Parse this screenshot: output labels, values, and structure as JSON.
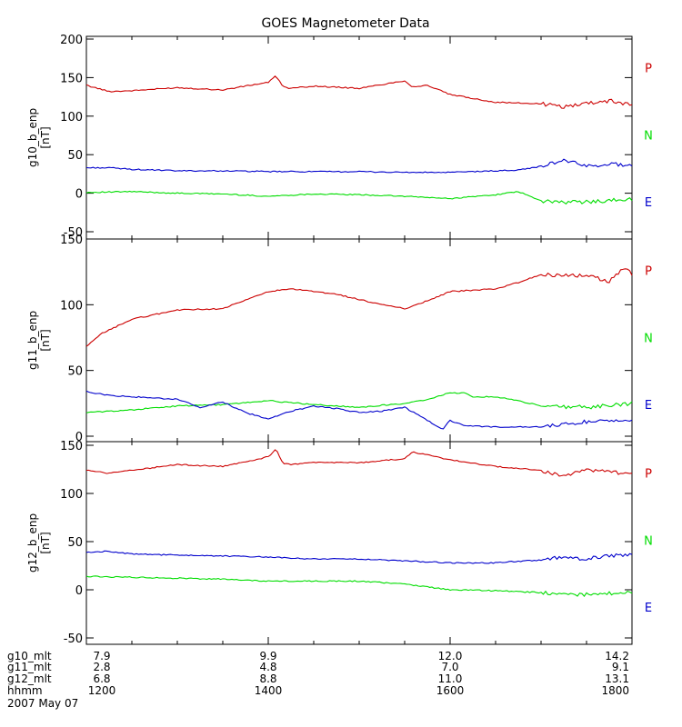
{
  "chart_data": {
    "type": "line",
    "title": "GOES Magnetometer Data",
    "date_label": "2007 May 07",
    "x_axis": {
      "row_labels": [
        "g10_mlt",
        "g11_mlt",
        "g12_mlt",
        "hhmm"
      ],
      "ticks": [
        {
          "values": [
            "7.9",
            "2.8",
            "6.8",
            "1200"
          ]
        },
        {
          "values": [
            "9.9",
            "4.8",
            "8.8",
            "1400"
          ]
        },
        {
          "values": [
            "12.0",
            "7.0",
            "11.0",
            "1600"
          ]
        },
        {
          "values": [
            "14.2",
            "9.1",
            "13.1",
            "1800"
          ]
        }
      ],
      "xlim": [
        "1200",
        "1800"
      ]
    },
    "panels": [
      {
        "ylabel": "g10_b_enp",
        "yunit": "[nT]",
        "ylim": [
          -50,
          200
        ],
        "yticks": [
          "-50",
          "0",
          "50",
          "100",
          "150",
          "200"
        ],
        "series": [
          {
            "name": "P",
            "color": "#cc0000",
            "x": [
              "1200",
              "1215",
              "1230",
              "1300",
              "1330",
              "1400",
              "1405",
              "1410",
              "1415",
              "1430",
              "1500",
              "1530",
              "1535",
              "1545",
              "1600",
              "1630",
              "1700",
              "1715",
              "1730",
              "1745",
              "1800"
            ],
            "values": [
              140,
              132,
              133,
              137,
              134,
              144,
              152,
              138,
              136,
              139,
              136,
              146,
              138,
              140,
              128,
              118,
              116,
              112,
              117,
              120,
              115
            ]
          },
          {
            "name": "N",
            "color": "#00dd00",
            "x": [
              "1200",
              "1230",
              "1300",
              "1330",
              "1400",
              "1430",
              "1500",
              "1530",
              "1600",
              "1630",
              "1645",
              "1700",
              "1715",
              "1730",
              "1800"
            ],
            "values": [
              1,
              2,
              0,
              -1,
              -4,
              -1,
              -2,
              -4,
              -7,
              -2,
              2,
              -10,
              -12,
              -11,
              -8
            ]
          },
          {
            "name": "E",
            "color": "#0000cc",
            "x": [
              "1200",
              "1215",
              "1230",
              "1300",
              "1330",
              "1400",
              "1430",
              "1500",
              "1530",
              "1600",
              "1630",
              "1645",
              "1700",
              "1715",
              "1730",
              "1745",
              "1800"
            ],
            "values": [
              33,
              33,
              31,
              29,
              29,
              28,
              28,
              28,
              27,
              27,
              29,
              30,
              35,
              43,
              35,
              38,
              36
            ]
          }
        ]
      },
      {
        "ylabel": "g11_b_enp",
        "yunit": "[nT]",
        "ylim": [
          0,
          150
        ],
        "yticks": [
          "0",
          "50",
          "100",
          "150"
        ],
        "series": [
          {
            "name": "P",
            "color": "#cc0000",
            "x": [
              "1200",
              "1210",
              "1230",
              "1300",
              "1330",
              "1400",
              "1415",
              "1445",
              "1515",
              "1530",
              "1545",
              "1600",
              "1615",
              "1630",
              "1645",
              "1700",
              "1730",
              "1745",
              "1755",
              "1800"
            ],
            "values": [
              68,
              78,
              89,
              96,
              97,
              110,
              112,
              108,
              100,
              97,
              103,
              110,
              111,
              112,
              117,
              123,
              122,
              118,
              129,
              123
            ]
          },
          {
            "name": "N",
            "color": "#00dd00",
            "x": [
              "1200",
              "1230",
              "1300",
              "1330",
              "1400",
              "1430",
              "1500",
              "1530",
              "1545",
              "1600",
              "1610",
              "1615",
              "1630",
              "1645",
              "1700",
              "1730",
              "1800"
            ],
            "values": [
              18,
              20,
              23,
              24,
              27,
              24,
              22,
              25,
              28,
              33,
              33,
              30,
              30,
              27,
              23,
              22,
              25
            ]
          },
          {
            "name": "E",
            "color": "#0000cc",
            "x": [
              "1200",
              "1215",
              "1230",
              "1300",
              "1315",
              "1330",
              "1345",
              "1400",
              "1415",
              "1430",
              "1445",
              "1500",
              "1515",
              "1530",
              "1545",
              "1555",
              "1600",
              "1610",
              "1630",
              "1700",
              "1730",
              "1800"
            ],
            "values": [
              34,
              31,
              30,
              28,
              22,
              26,
              18,
              13,
              19,
              23,
              21,
              18,
              19,
              22,
              12,
              5,
              12,
              8,
              7,
              7,
              11,
              13
            ]
          }
        ]
      },
      {
        "ylabel": "g12_b_enp",
        "yunit": "[nT]",
        "ylim": [
          -50,
          150
        ],
        "yticks": [
          "-50",
          "0",
          "50",
          "100",
          "150"
        ],
        "series": [
          {
            "name": "P",
            "color": "#cc0000",
            "x": [
              "1200",
              "1215",
              "1230",
              "1300",
              "1330",
              "1400",
              "1405",
              "1410",
              "1415",
              "1430",
              "1500",
              "1530",
              "1535",
              "1545",
              "1600",
              "1630",
              "1700",
              "1715",
              "1730",
              "1800"
            ],
            "values": [
              124,
              121,
              124,
              130,
              128,
              138,
              146,
              131,
              130,
              132,
              132,
              136,
              143,
              140,
              135,
              128,
              124,
              118,
              125,
              120
            ]
          },
          {
            "name": "N",
            "color": "#00dd00",
            "x": [
              "1200",
              "1230",
              "1300",
              "1330",
              "1400",
              "1430",
              "1500",
              "1530",
              "1600",
              "1630",
              "1700",
              "1715",
              "1730",
              "1800"
            ],
            "values": [
              14,
              13,
              12,
              11,
              9,
              9,
              9,
              6,
              0,
              -1,
              -3,
              -5,
              -5,
              -2
            ]
          },
          {
            "name": "E",
            "color": "#0000cc",
            "x": [
              "1200",
              "1215",
              "1230",
              "1300",
              "1330",
              "1400",
              "1430",
              "1500",
              "1530",
              "1600",
              "1630",
              "1700",
              "1715",
              "1730",
              "1745",
              "1800"
            ],
            "values": [
              39,
              40,
              37,
              36,
              35,
              34,
              32,
              32,
              30,
              28,
              28,
              31,
              34,
              32,
              35,
              37
            ]
          }
        ]
      }
    ]
  }
}
